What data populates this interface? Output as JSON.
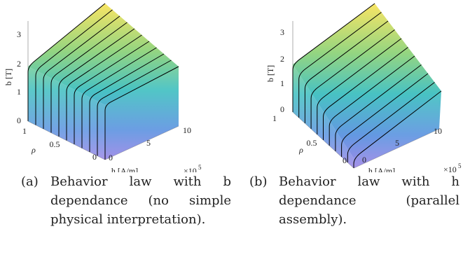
{
  "figures": [
    {
      "z_label": "b [T]",
      "z_ticks": [
        "0",
        "1",
        "2",
        "3"
      ],
      "rho_label": "ρ",
      "rho_ticks": [
        "0",
        "0.5",
        "1"
      ],
      "h_label": "h [A/m]",
      "h_exponent": "×10",
      "h_exponent_power": "5",
      "h_ticks": [
        "0",
        "5",
        "10"
      ],
      "caption_label": "(a)",
      "caption_text": "Behavior law with b dependance (no simple physical interpretation)."
    },
    {
      "z_label": "b [T]",
      "z_ticks": [
        "0",
        "1",
        "2",
        "3"
      ],
      "rho_label": "ρ",
      "rho_ticks": [
        "0",
        "0.5",
        "1"
      ],
      "h_label": "h [A/m]",
      "h_exponent": "×10",
      "h_exponent_power": "5",
      "h_ticks": [
        "0",
        "5",
        "10"
      ],
      "caption_label": "(b)",
      "caption_text": "Behavior law with h dependance (parallel assembly)."
    }
  ]
}
